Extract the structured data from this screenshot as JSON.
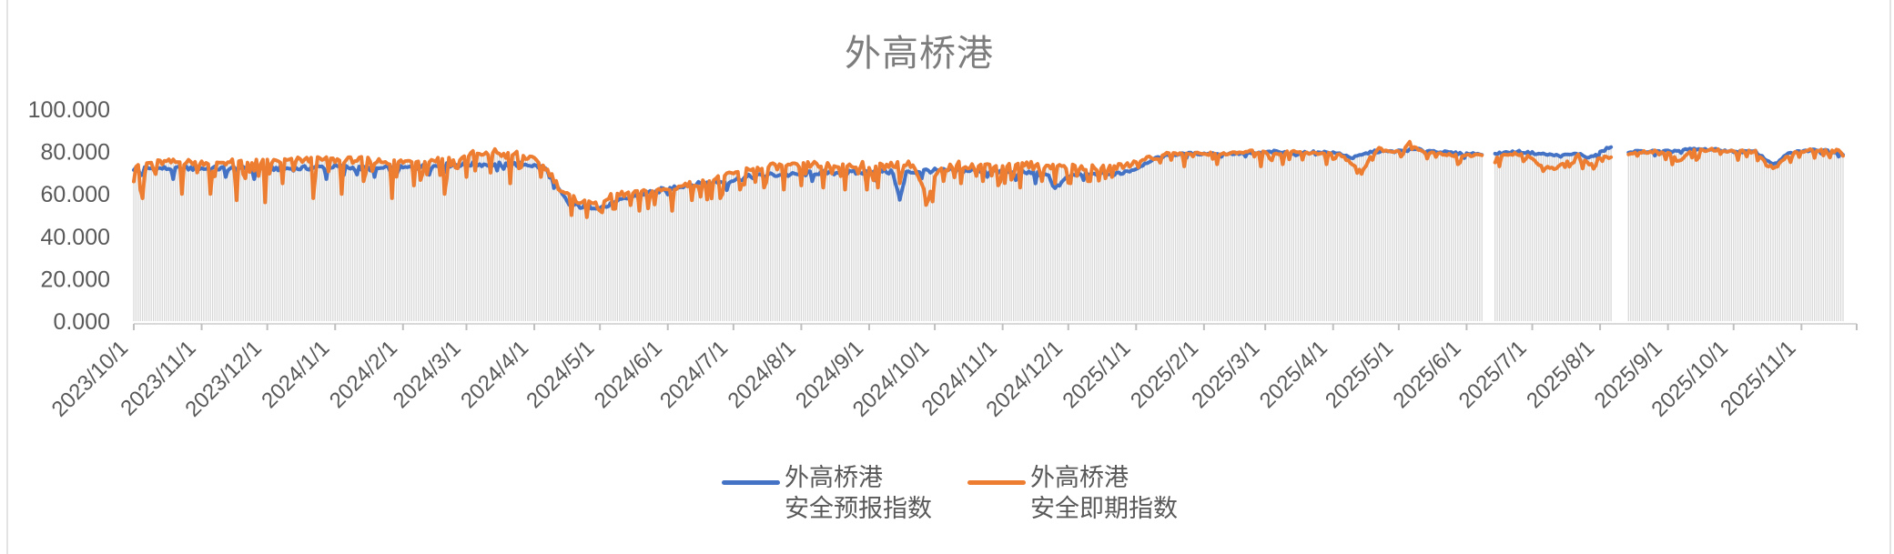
{
  "chart_data": {
    "type": "line",
    "title": "外高桥港",
    "start_date": "2023-10-01",
    "end_date": "2025-11-20",
    "ylim": [
      0,
      100
    ],
    "grid": false,
    "legend_position": "bottom",
    "dropline_color": "#d6d6d6",
    "axis_line_color": "#d9d9d9",
    "tick_color": "#bfbfbf",
    "label_color": "#595959",
    "title_color": "#7d7d7d",
    "y_ticks": [
      {
        "v": 0,
        "label": "0.000"
      },
      {
        "v": 20,
        "label": "20.000"
      },
      {
        "v": 40,
        "label": "40.000"
      },
      {
        "v": 60,
        "label": "60.000"
      },
      {
        "v": 80,
        "label": "80.000"
      },
      {
        "v": 100,
        "label": "100.000"
      }
    ],
    "x_ticks": [
      "2023/10/1",
      "2023/11/1",
      "2023/12/1",
      "2024/1/1",
      "2024/2/1",
      "2024/3/1",
      "2024/4/1",
      "2024/5/1",
      "2024/6/1",
      "2024/7/1",
      "2024/8/1",
      "2024/9/1",
      "2024/10/1",
      "2024/11/1",
      "2024/12/1",
      "2025/1/1",
      "2025/2/1",
      "2025/3/1",
      "2025/4/1",
      "2025/5/1",
      "2025/6/1",
      "2025/7/1",
      "2025/8/1",
      "2025/9/1",
      "2025/10/1",
      "2025/11/1"
    ],
    "gaps": [
      {
        "from": "2025-06-09",
        "to": "2025-06-13"
      },
      {
        "from": "2025-08-07",
        "to": "2025-08-13"
      }
    ],
    "series": [
      {
        "name_line1": "外高桥港",
        "name_line2": "安全预报指数",
        "color": "#4472C4",
        "noise": 1.1,
        "dip_prob": 0.04,
        "dip_depth": 4,
        "damp_after": 458,
        "damp": 0.5,
        "keypoints": [
          [
            0,
            72
          ],
          [
            15,
            72
          ],
          [
            30,
            72
          ],
          [
            45,
            72
          ],
          [
            60,
            72
          ],
          [
            75,
            72
          ],
          [
            90,
            73
          ],
          [
            105,
            72
          ],
          [
            120,
            72
          ],
          [
            135,
            73
          ],
          [
            150,
            74
          ],
          [
            165,
            74
          ],
          [
            180,
            74
          ],
          [
            188,
            72
          ],
          [
            194,
            62
          ],
          [
            199,
            55
          ],
          [
            205,
            54
          ],
          [
            211,
            54
          ],
          [
            216,
            54
          ],
          [
            223,
            57
          ],
          [
            232,
            60
          ],
          [
            241,
            62
          ],
          [
            251,
            64
          ],
          [
            261,
            65
          ],
          [
            271,
            66
          ],
          [
            281,
            68
          ],
          [
            291,
            69
          ],
          [
            301,
            69
          ],
          [
            311,
            70
          ],
          [
            321,
            70
          ],
          [
            331,
            70
          ],
          [
            341,
            71
          ],
          [
            347,
            70
          ],
          [
            350,
            57
          ],
          [
            353,
            70
          ],
          [
            361,
            71
          ],
          [
            371,
            71
          ],
          [
            381,
            71
          ],
          [
            391,
            71
          ],
          [
            401,
            70
          ],
          [
            411,
            70
          ],
          [
            418,
            68
          ],
          [
            421,
            63
          ],
          [
            426,
            67
          ],
          [
            431,
            69
          ],
          [
            441,
            69
          ],
          [
            451,
            70
          ],
          [
            458,
            72
          ],
          [
            465,
            76
          ],
          [
            471,
            78
          ],
          [
            481,
            79
          ],
          [
            491,
            79
          ],
          [
            501,
            79
          ],
          [
            511,
            79
          ],
          [
            521,
            80
          ],
          [
            531,
            79
          ],
          [
            541,
            80
          ],
          [
            551,
            79
          ],
          [
            557,
            77
          ],
          [
            566,
            80
          ],
          [
            576,
            80
          ],
          [
            586,
            81
          ],
          [
            596,
            80
          ],
          [
            606,
            79
          ],
          [
            616,
            79
          ],
          [
            622,
            79
          ],
          [
            632,
            80
          ],
          [
            642,
            79
          ],
          [
            652,
            78
          ],
          [
            660,
            79
          ],
          [
            665,
            77
          ],
          [
            671,
            80
          ],
          [
            674,
            82
          ],
          [
            675,
            82
          ],
          [
            683,
            80
          ],
          [
            691,
            80
          ],
          [
            701,
            80
          ],
          [
            711,
            81
          ],
          [
            721,
            81
          ],
          [
            731,
            80
          ],
          [
            741,
            80
          ],
          [
            746,
            76
          ],
          [
            750,
            74
          ],
          [
            756,
            79
          ],
          [
            761,
            80
          ],
          [
            771,
            81
          ],
          [
            781,
            79
          ]
        ],
        "overrides": [
          [
            4,
            69
          ],
          [
            18,
            67
          ],
          [
            42,
            68
          ],
          [
            55,
            67
          ],
          [
            88,
            67
          ],
          [
            110,
            68
          ],
          [
            135,
            69
          ],
          [
            166,
            71
          ],
          [
            310,
            66
          ],
          [
            390,
            68
          ]
        ]
      },
      {
        "name_line1": "外高桥港",
        "name_line2": "安全即期指数",
        "color": "#ED7D31",
        "noise": 1.5,
        "dip_prob": 0.17,
        "dip_depth": 8,
        "damp_after": 458,
        "damp": 0.45,
        "keypoints": [
          [
            0,
            74
          ],
          [
            15,
            75
          ],
          [
            30,
            75
          ],
          [
            45,
            75
          ],
          [
            60,
            75
          ],
          [
            75,
            76
          ],
          [
            90,
            76
          ],
          [
            105,
            76
          ],
          [
            120,
            75
          ],
          [
            135,
            76
          ],
          [
            150,
            77
          ],
          [
            155,
            79
          ],
          [
            160,
            78
          ],
          [
            165,
            80
          ],
          [
            170,
            78
          ],
          [
            175,
            79
          ],
          [
            180,
            77
          ],
          [
            185,
            75
          ],
          [
            190,
            70
          ],
          [
            195,
            62
          ],
          [
            200,
            58
          ],
          [
            206,
            56
          ],
          [
            211,
            57
          ],
          [
            216,
            58
          ],
          [
            223,
            60
          ],
          [
            229,
            60
          ],
          [
            236,
            61
          ],
          [
            243,
            62
          ],
          [
            251,
            64
          ],
          [
            258,
            65
          ],
          [
            266,
            67
          ],
          [
            273,
            69
          ],
          [
            281,
            72
          ],
          [
            291,
            73
          ],
          [
            301,
            73
          ],
          [
            311,
            74
          ],
          [
            321,
            73
          ],
          [
            331,
            74
          ],
          [
            338,
            73
          ],
          [
            346,
            74
          ],
          [
            356,
            74
          ],
          [
            363,
            57
          ],
          [
            367,
            70
          ],
          [
            376,
            74
          ],
          [
            384,
            73
          ],
          [
            391,
            74
          ],
          [
            401,
            73
          ],
          [
            411,
            74
          ],
          [
            421,
            73
          ],
          [
            431,
            73
          ],
          [
            441,
            72
          ],
          [
            451,
            73
          ],
          [
            458,
            75
          ],
          [
            465,
            78
          ],
          [
            471,
            79
          ],
          [
            481,
            79
          ],
          [
            491,
            79
          ],
          [
            501,
            79
          ],
          [
            511,
            80
          ],
          [
            521,
            79
          ],
          [
            531,
            80
          ],
          [
            541,
            79
          ],
          [
            551,
            79
          ],
          [
            557,
            74
          ],
          [
            561,
            70
          ],
          [
            566,
            79
          ],
          [
            568,
            83
          ],
          [
            572,
            80
          ],
          [
            578,
            80
          ],
          [
            583,
            84
          ],
          [
            588,
            80
          ],
          [
            596,
            79
          ],
          [
            606,
            78
          ],
          [
            616,
            78
          ],
          [
            622,
            77
          ],
          [
            630,
            79
          ],
          [
            637,
            78
          ],
          [
            643,
            73
          ],
          [
            650,
            72
          ],
          [
            656,
            76
          ],
          [
            660,
            78
          ],
          [
            665,
            74
          ],
          [
            670,
            77
          ],
          [
            673,
            78
          ],
          [
            675,
            77
          ],
          [
            683,
            79
          ],
          [
            691,
            80
          ],
          [
            701,
            80
          ],
          [
            706,
            75
          ],
          [
            711,
            80
          ],
          [
            721,
            81
          ],
          [
            731,
            80
          ],
          [
            741,
            80
          ],
          [
            746,
            74
          ],
          [
            750,
            72
          ],
          [
            756,
            78
          ],
          [
            761,
            80
          ],
          [
            771,
            81
          ],
          [
            781,
            80
          ]
        ],
        "overrides": [
          [
            3,
            62
          ],
          [
            4,
            58
          ],
          [
            22,
            60
          ],
          [
            35,
            60
          ],
          [
            47,
            57
          ],
          [
            60,
            56
          ],
          [
            68,
            65
          ],
          [
            82,
            58
          ],
          [
            95,
            60
          ],
          [
            105,
            66
          ],
          [
            118,
            58
          ],
          [
            128,
            64
          ],
          [
            142,
            60
          ],
          [
            152,
            68
          ],
          [
            163,
            70
          ],
          [
            172,
            65
          ],
          [
            186,
            68
          ],
          [
            200,
            50
          ],
          [
            207,
            49
          ],
          [
            213,
            52
          ],
          [
            220,
            53
          ],
          [
            231,
            52
          ],
          [
            238,
            55
          ],
          [
            246,
            52
          ],
          [
            255,
            57
          ],
          [
            268,
            58
          ],
          [
            277,
            62
          ],
          [
            288,
            63
          ],
          [
            297,
            62
          ],
          [
            305,
            64
          ],
          [
            315,
            63
          ],
          [
            325,
            62
          ],
          [
            335,
            62
          ],
          [
            340,
            63
          ],
          [
            350,
            65
          ],
          [
            370,
            66
          ],
          [
            378,
            65
          ],
          [
            388,
            66
          ],
          [
            395,
            64
          ],
          [
            405,
            63
          ],
          [
            415,
            66
          ],
          [
            428,
            65
          ],
          [
            437,
            66
          ],
          [
            447,
            68
          ],
          [
            480,
            73
          ],
          [
            495,
            74
          ],
          [
            515,
            73
          ],
          [
            525,
            74
          ],
          [
            545,
            74
          ],
          [
            605,
            74
          ],
          [
            624,
            73
          ],
          [
            662,
            72
          ],
          [
            714,
            76
          ],
          [
            733,
            76
          ],
          [
            757,
            75
          ],
          [
            768,
            77
          ]
        ]
      }
    ]
  }
}
